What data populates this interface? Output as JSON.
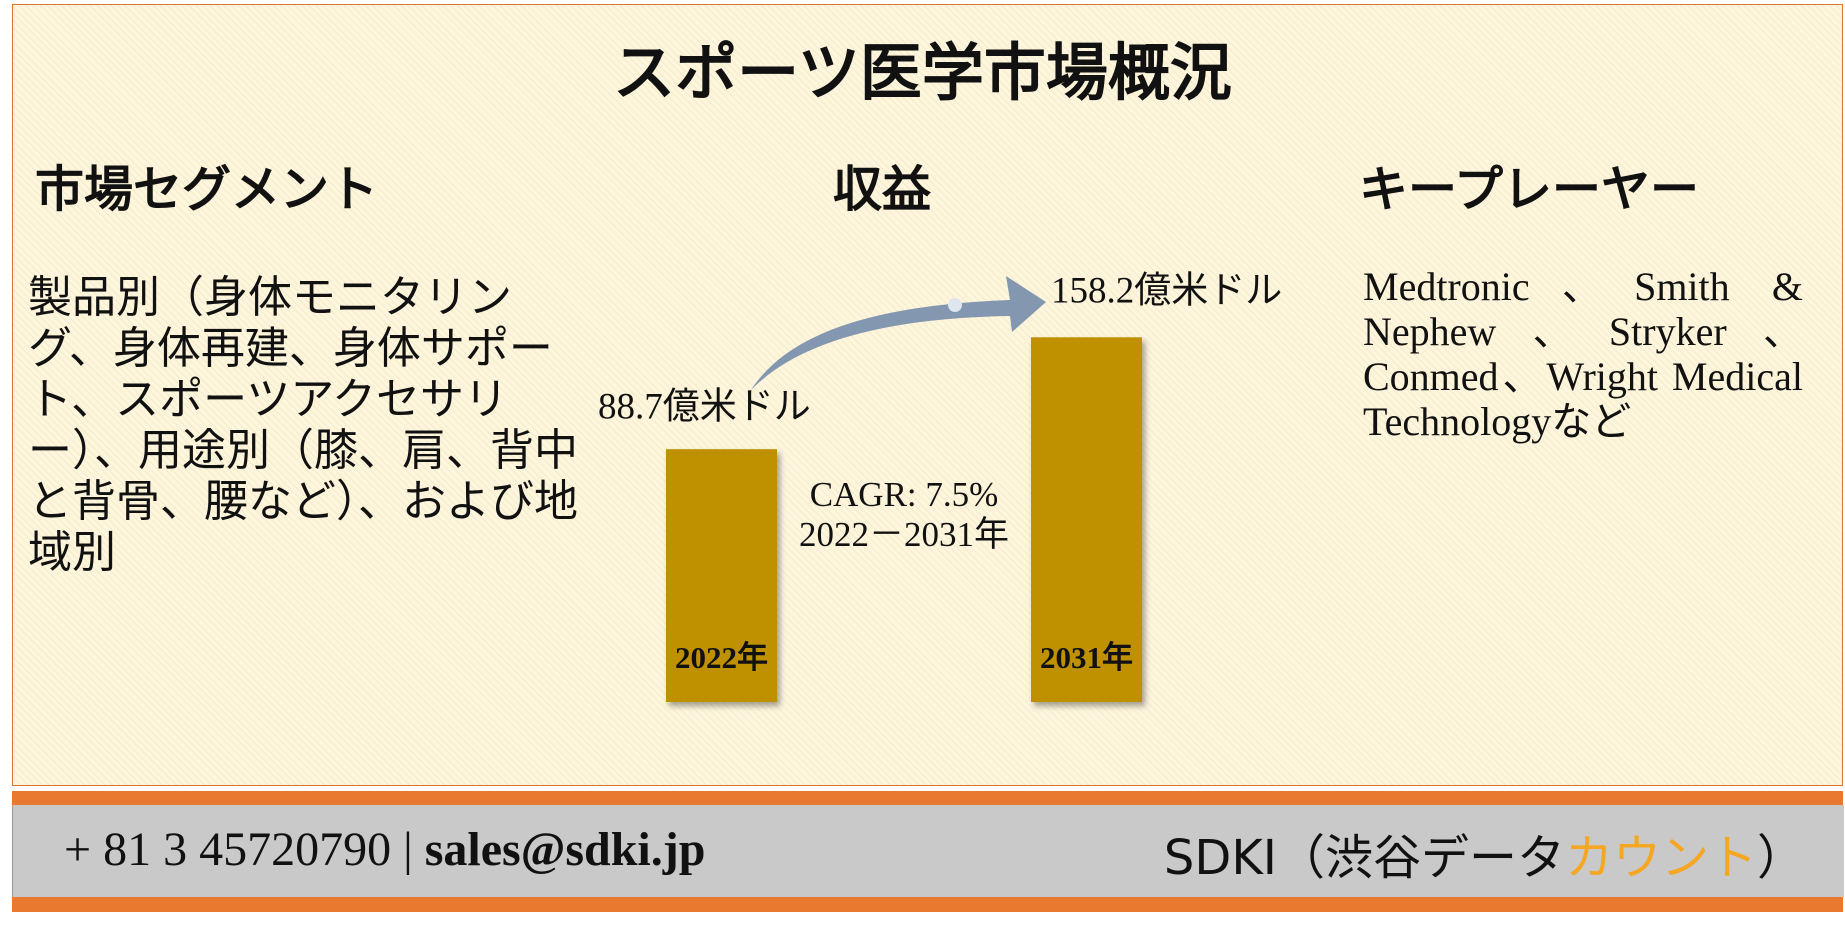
{
  "title": "スポーツ医学市場概況",
  "segments": {
    "heading": "市場セグメント",
    "text": "製品別（身体モニタリング、身体再建、身体サポート、スポーツアクセサリー）、用途別（膝、肩、背中と背骨、腰など）、および地域別"
  },
  "revenue": {
    "heading": "収益",
    "bars": [
      {
        "year": "2022年",
        "value": 88.7,
        "value_label": "88.7億米ドル"
      },
      {
        "year": "2031年",
        "value": 158.2,
        "value_label": "158.2億米ドル"
      }
    ],
    "cagr": "CAGR: 7.5%",
    "period": "2022－2031年",
    "bar_color": "#bf9000",
    "arrow_color": "#8497b0"
  },
  "players": {
    "heading": "キープレーヤー",
    "text": "Medtronic、Smith & Nephew、Stryker、Conmed、Wright Medical Technologyなど"
  },
  "footer": {
    "phone": "+ 81 3 45720790",
    "separator": "|",
    "email": "sales@sdki.jp",
    "brand": "SDKI（渋谷データ",
    "brand_highlight": "カウント",
    "brand_end": "）"
  }
}
